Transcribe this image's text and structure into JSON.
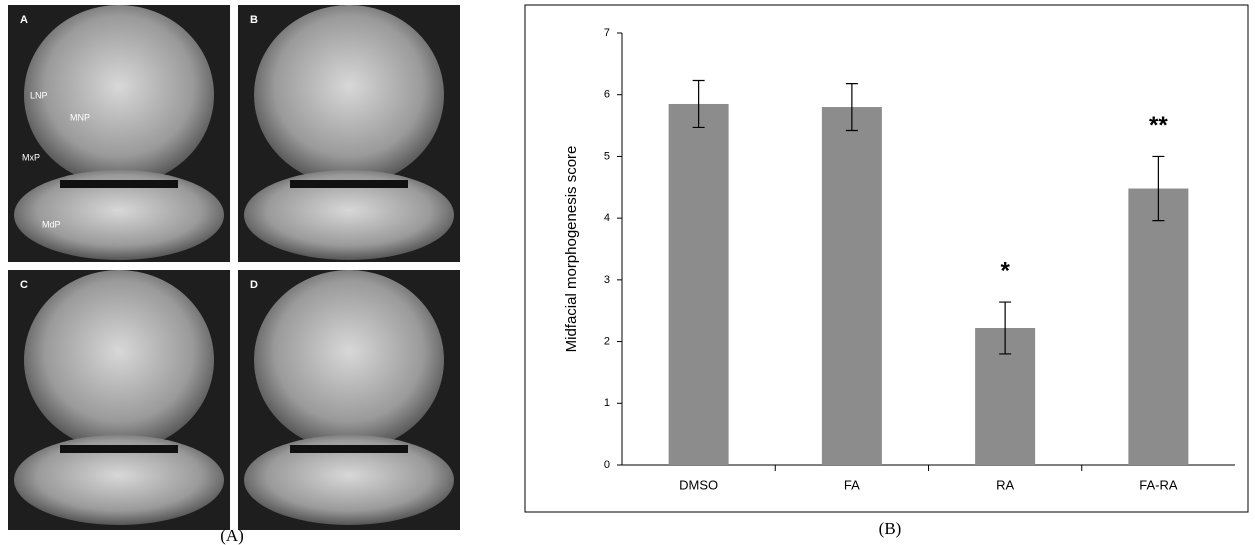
{
  "panel_a": {
    "caption": "(A)",
    "images": [
      {
        "label": "A",
        "annotations": [
          "LNP",
          "MNP",
          "MxP",
          "MdP"
        ]
      },
      {
        "label": "B",
        "annotations": []
      },
      {
        "label": "C",
        "annotations": []
      },
      {
        "label": "D",
        "annotations": []
      }
    ]
  },
  "chart_data": {
    "type": "bar",
    "caption": "(B)",
    "y_label": "Midfacial morphogenesis score",
    "categories": [
      "DMSO",
      "FA",
      "RA",
      "FA-RA"
    ],
    "values": [
      5.85,
      5.8,
      2.22,
      4.48
    ],
    "errors": [
      0.38,
      0.38,
      0.42,
      0.52
    ],
    "color": "#8c8c8c",
    "annotations": [
      {
        "category": "RA",
        "text": "*"
      },
      {
        "category": "FA-RA",
        "text": "**"
      }
    ],
    "ylim": [
      0,
      7
    ],
    "yticks": [
      0,
      1,
      2,
      3,
      4,
      5,
      6,
      7
    ]
  }
}
